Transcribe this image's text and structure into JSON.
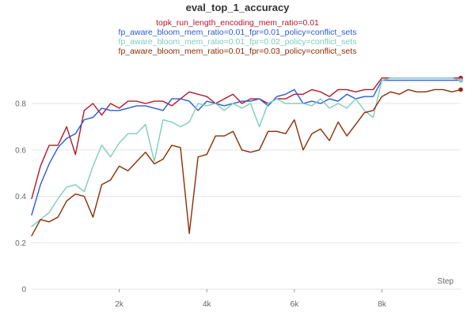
{
  "chart_data": {
    "type": "line",
    "title": "eval_top_1_accuracy",
    "xlabel": "Step",
    "ylabel": "",
    "xlim": [
      0,
      9800
    ],
    "ylim": [
      0,
      0.96
    ],
    "xticks": [
      2000,
      4000,
      6000,
      8000
    ],
    "xtick_labels": [
      "2k",
      "4k",
      "6k",
      "8k"
    ],
    "yticks": [
      0,
      0.2,
      0.4,
      0.6,
      0.8
    ],
    "ytick_labels": [
      "0",
      "0.2",
      "0.4",
      "0.6",
      "0.8"
    ],
    "grid": "horizontal",
    "legend_position": "top-center",
    "series": [
      {
        "name": "topk_run_length_encoding_mem_ratio=0.01",
        "color": "#b2182b",
        "x": [
          0,
          200,
          400,
          600,
          800,
          1000,
          1200,
          1400,
          1600,
          1800,
          2000,
          2200,
          2400,
          2600,
          2800,
          3000,
          3200,
          3400,
          3600,
          3800,
          4000,
          4200,
          4400,
          4600,
          4800,
          5000,
          5200,
          5400,
          5600,
          5800,
          6000,
          6200,
          6400,
          6600,
          6800,
          7000,
          7200,
          7400,
          7600,
          7800,
          8000,
          8200,
          8400,
          8600,
          8800,
          9000,
          9200,
          9400,
          9600,
          9800
        ],
        "y": [
          0.39,
          0.53,
          0.62,
          0.62,
          0.7,
          0.58,
          0.77,
          0.8,
          0.75,
          0.8,
          0.78,
          0.81,
          0.81,
          0.8,
          0.81,
          0.81,
          0.79,
          0.82,
          0.85,
          0.84,
          0.83,
          0.8,
          0.82,
          0.84,
          0.8,
          0.82,
          0.82,
          0.8,
          0.82,
          0.82,
          0.84,
          0.84,
          0.86,
          0.85,
          0.83,
          0.86,
          0.86,
          0.85,
          0.86,
          0.86,
          0.91,
          0.91,
          0.91,
          0.91,
          0.91,
          0.91,
          0.91,
          0.91,
          0.91,
          0.91
        ]
      },
      {
        "name": "fp_aware_bloom_mem_ratio=0.01_fpr=0.01_policy=conflict_sets",
        "color": "#2a5bd7",
        "x": [
          0,
          200,
          400,
          600,
          800,
          1000,
          1200,
          1400,
          1600,
          1800,
          2000,
          2200,
          2400,
          2600,
          2800,
          3000,
          3200,
          3400,
          3600,
          3800,
          4000,
          4200,
          4400,
          4600,
          4800,
          5000,
          5200,
          5400,
          5600,
          5800,
          6000,
          6200,
          6400,
          6600,
          6800,
          7000,
          7200,
          7400,
          7600,
          7800,
          8000,
          8200,
          8400,
          8600,
          8800,
          9000,
          9200,
          9400,
          9600,
          9800
        ],
        "y": [
          0.32,
          0.45,
          0.54,
          0.61,
          0.65,
          0.67,
          0.73,
          0.74,
          0.78,
          0.77,
          0.77,
          0.78,
          0.79,
          0.79,
          0.78,
          0.77,
          0.82,
          0.82,
          0.81,
          0.77,
          0.81,
          0.8,
          0.79,
          0.8,
          0.81,
          0.81,
          0.82,
          0.79,
          0.83,
          0.84,
          0.86,
          0.8,
          0.81,
          0.8,
          0.82,
          0.81,
          0.84,
          0.82,
          0.83,
          0.83,
          0.9,
          0.9,
          0.9,
          0.9,
          0.9,
          0.9,
          0.9,
          0.9,
          0.9,
          0.9
        ]
      },
      {
        "name": "fp_aware_bloom_mem_ratio=0.01_fpr=0.02_policy=conflict_sets",
        "color": "#7fcdbb",
        "x": [
          0,
          200,
          400,
          600,
          800,
          1000,
          1200,
          1400,
          1600,
          1800,
          2000,
          2200,
          2400,
          2600,
          2800,
          3000,
          3200,
          3400,
          3600,
          3800,
          4000,
          4200,
          4400,
          4600,
          4800,
          5000,
          5200,
          5400,
          5600,
          5800,
          6000,
          6200,
          6400,
          6600,
          6800,
          7000,
          7200,
          7400,
          7600,
          7800,
          8000,
          8200,
          8400,
          8600,
          8800,
          9000,
          9200,
          9400,
          9600,
          9800
        ],
        "y": [
          0.27,
          0.3,
          0.33,
          0.39,
          0.44,
          0.45,
          0.42,
          0.53,
          0.62,
          0.57,
          0.63,
          0.67,
          0.67,
          0.71,
          0.55,
          0.73,
          0.72,
          0.7,
          0.72,
          0.8,
          0.79,
          0.8,
          0.77,
          0.8,
          0.78,
          0.8,
          0.7,
          0.8,
          0.82,
          0.8,
          0.8,
          0.8,
          0.79,
          0.82,
          0.78,
          0.8,
          0.78,
          0.82,
          0.77,
          0.74,
          0.9,
          0.91,
          0.91,
          0.91,
          0.91,
          0.91,
          0.91,
          0.91,
          0.91,
          0.9
        ]
      },
      {
        "name": "fp_aware_bloom_mem_ratio=0.01_fpr=0.03_policy=conflict_sets",
        "color": "#8c2d04",
        "x": [
          0,
          200,
          400,
          600,
          800,
          1000,
          1200,
          1400,
          1600,
          1800,
          2000,
          2200,
          2400,
          2600,
          2800,
          3000,
          3200,
          3400,
          3600,
          3800,
          4000,
          4200,
          4400,
          4600,
          4800,
          5000,
          5200,
          5400,
          5600,
          5800,
          6000,
          6200,
          6400,
          6600,
          6800,
          7000,
          7200,
          7400,
          7600,
          7800,
          8000,
          8200,
          8400,
          8600,
          8800,
          9000,
          9200,
          9400,
          9600,
          9800
        ],
        "y": [
          0.23,
          0.3,
          0.29,
          0.31,
          0.38,
          0.41,
          0.4,
          0.31,
          0.45,
          0.47,
          0.53,
          0.51,
          0.55,
          0.59,
          0.54,
          0.56,
          0.62,
          0.61,
          0.24,
          0.57,
          0.58,
          0.66,
          0.66,
          0.68,
          0.6,
          0.59,
          0.6,
          0.68,
          0.68,
          0.67,
          0.73,
          0.6,
          0.67,
          0.69,
          0.64,
          0.72,
          0.66,
          0.71,
          0.76,
          0.77,
          0.83,
          0.85,
          0.84,
          0.86,
          0.85,
          0.85,
          0.86,
          0.86,
          0.85,
          0.86
        ]
      }
    ]
  }
}
